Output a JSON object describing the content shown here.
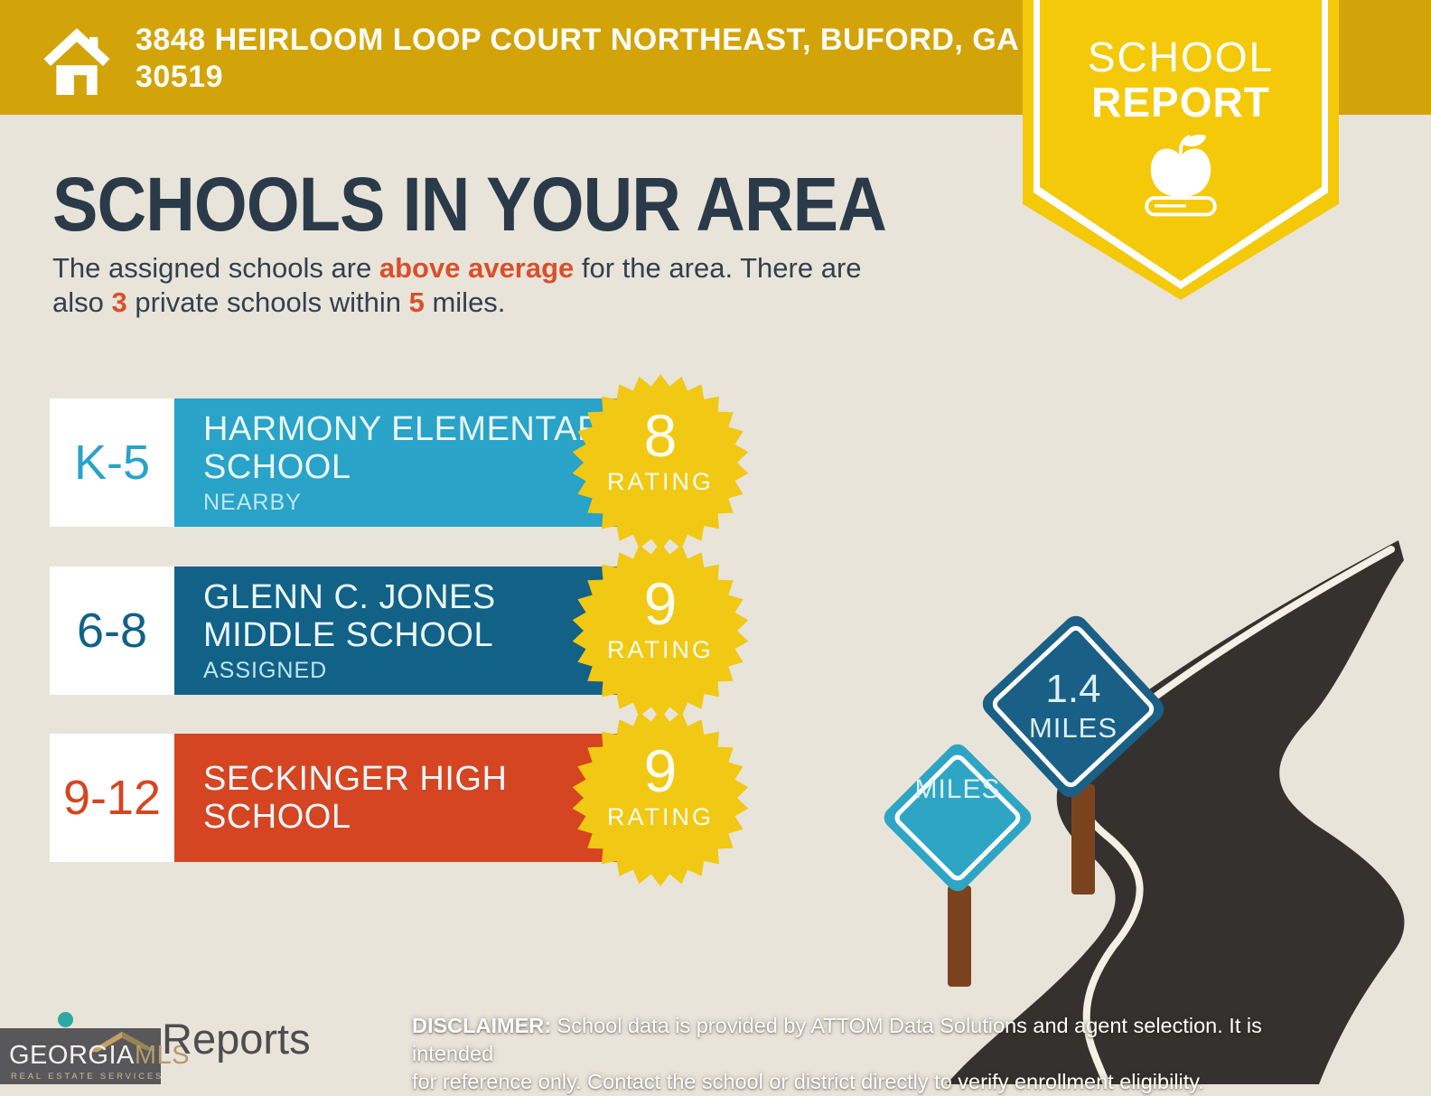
{
  "header": {
    "address_line1": "3848 HEIRLOOM LOOP COURT NORTHEAST, BUFORD, GA",
    "address_line2": "30519"
  },
  "pennant": {
    "line1": "SCHOOL",
    "line2": "REPORT"
  },
  "main": {
    "title": "SCHOOLS IN YOUR AREA",
    "subtitle": {
      "l1a": "The assigned schools are ",
      "l1b": "above average",
      "l1c": " for the area. There are",
      "l2a": "also ",
      "l2b": "3",
      "l2c": " private schools within ",
      "l2d": "5",
      "l2e": " miles."
    }
  },
  "schools": [
    {
      "grades": "K-5",
      "name_lines": [
        "HARMONY ELEMENTARY",
        "SCHOOL"
      ],
      "sub_label": "NEARBY",
      "rating": "8",
      "rating_label": "RATING"
    },
    {
      "grades": "6-8",
      "name_lines": [
        "GLENN C. JONES",
        "MIDDLE SCHOOL"
      ],
      "sub_label": "ASSIGNED",
      "rating": "9",
      "rating_label": "RATING"
    },
    {
      "grades": "9-12",
      "name_lines": [
        "SECKINGER HIGH",
        "SCHOOL"
      ],
      "sub_label": "",
      "rating": "9",
      "rating_label": "RATING"
    }
  ],
  "signs": [
    {
      "value": "1.4",
      "unit": "MILES"
    },
    {
      "value": "",
      "unit": "MILES"
    }
  ],
  "footer": {
    "logo_georgia": "GEORGIA",
    "logo_mls": "MLS",
    "logo_tagline": "REAL ESTATE SERVICES",
    "reports": "Reports",
    "disclaimer": {
      "line1_bold": "DISCLAIMER:",
      "line1_rest": " School data is provided by ATTOM Data Solutions and agent selection. It is intended",
      "line2": "for reference only. Contact the school or district directly to verify enrollment eligibility."
    }
  },
  "colors": {
    "background": "#E9E4DA",
    "banner_gold": "#D2A40A",
    "pennant_yellow": "#F3C90A",
    "star_yellow": "#F1C814",
    "elementary_teal": "#29A3C7",
    "middle_blue": "#126187",
    "high_red": "#D64521",
    "heading_navy": "#2B3A49",
    "accent_red": "#D8502B",
    "road_dark": "#35312E",
    "post_brown": "#7A431E",
    "sign_big_blue": "#1A5F85",
    "sign_small_teal": "#2EA5C4",
    "logo_gray": "#58585A",
    "logo_tan": "#B49A6B"
  }
}
